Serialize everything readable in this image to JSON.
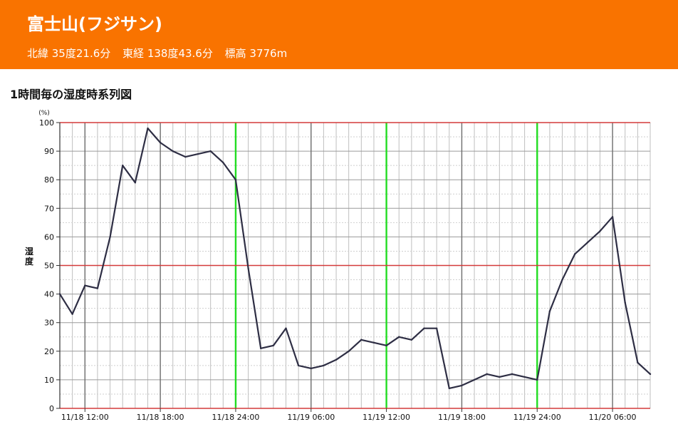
{
  "header": {
    "title": "富士山(フジサン)",
    "lat": "北緯 35度21.6分",
    "lon": "東経 138度43.6分",
    "elev": "標高 3776m"
  },
  "chart_title": "1時間毎の湿度時系列図",
  "colors": {
    "header_bg": "#f97300",
    "line": "#2e2e44",
    "day_line": "#22dd22",
    "ref_line": "#d43a3a"
  },
  "chart_data": {
    "type": "line",
    "title": "1時間毎の湿度時系列図",
    "ylabel": "湿度",
    "yunit": "(%)",
    "ylim": [
      0,
      100
    ],
    "yticks": [
      0,
      10,
      20,
      30,
      40,
      50,
      60,
      70,
      80,
      90,
      100
    ],
    "ref_lines_y": [
      0,
      50,
      100
    ],
    "grid": true,
    "x_start": "2023-11-18 10:00",
    "x_end": "2023-11-20 09:00",
    "x_tick_labels": [
      "11/18 12:00",
      "11/18 18:00",
      "11/18 24:00",
      "11/19 06:00",
      "11/19 12:00",
      "11/19 18:00",
      "11/19 24:00",
      "11/20 06:00"
    ],
    "x_tick_times": [
      "2023-11-18 12:00",
      "2023-11-18 18:00",
      "2023-11-19 00:00",
      "2023-11-19 06:00",
      "2023-11-19 12:00",
      "2023-11-19 18:00",
      "2023-11-20 00:00",
      "2023-11-20 06:00"
    ],
    "day_boundaries": [
      "2023-11-19 00:00",
      "2023-11-19 12:00",
      "2023-11-20 00:00"
    ],
    "x": [
      "2023-11-18 10:00",
      "2023-11-18 11:00",
      "2023-11-18 12:00",
      "2023-11-18 13:00",
      "2023-11-18 14:00",
      "2023-11-18 15:00",
      "2023-11-18 16:00",
      "2023-11-18 17:00",
      "2023-11-18 18:00",
      "2023-11-18 19:00",
      "2023-11-18 20:00",
      "2023-11-18 21:00",
      "2023-11-18 22:00",
      "2023-11-18 23:00",
      "2023-11-19 00:00",
      "2023-11-19 01:00",
      "2023-11-19 02:00",
      "2023-11-19 03:00",
      "2023-11-19 04:00",
      "2023-11-19 05:00",
      "2023-11-19 06:00",
      "2023-11-19 07:00",
      "2023-11-19 08:00",
      "2023-11-19 09:00",
      "2023-11-19 10:00",
      "2023-11-19 11:00",
      "2023-11-19 12:00",
      "2023-11-19 13:00",
      "2023-11-19 14:00",
      "2023-11-19 15:00",
      "2023-11-19 16:00",
      "2023-11-19 17:00",
      "2023-11-19 18:00",
      "2023-11-19 19:00",
      "2023-11-19 20:00",
      "2023-11-19 21:00",
      "2023-11-19 22:00",
      "2023-11-19 23:00",
      "2023-11-20 00:00",
      "2023-11-20 01:00",
      "2023-11-20 02:00",
      "2023-11-20 03:00",
      "2023-11-20 04:00",
      "2023-11-20 05:00",
      "2023-11-20 06:00",
      "2023-11-20 07:00",
      "2023-11-20 08:00",
      "2023-11-20 09:00"
    ],
    "values": [
      40,
      33,
      43,
      42,
      60,
      85,
      79,
      98,
      93,
      90,
      88,
      89,
      90,
      86,
      80,
      49,
      21,
      22,
      28,
      15,
      14,
      15,
      17,
      20,
      24,
      23,
      22,
      25,
      24,
      28,
      28,
      7,
      8,
      10,
      12,
      11,
      12,
      11,
      10,
      34,
      45,
      54,
      58,
      62,
      67,
      37,
      16,
      12
    ]
  }
}
